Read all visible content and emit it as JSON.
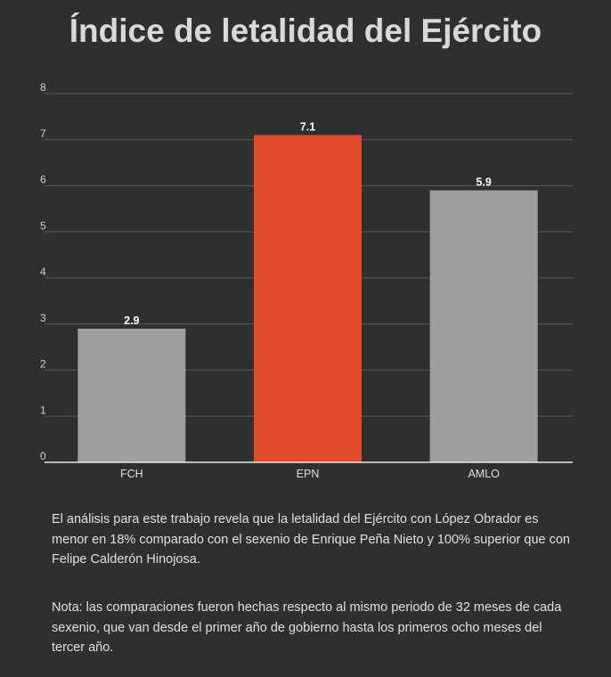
{
  "title": "Índice de letalidad del Ejército",
  "chart_data": {
    "type": "bar",
    "categories": [
      "FCH",
      "EPN",
      "AMLO"
    ],
    "values": [
      2.9,
      7.1,
      5.9
    ],
    "data_labels": [
      "2.9",
      "7.1",
      "5.9"
    ],
    "ylim": [
      0,
      8
    ],
    "y_ticks": [
      0,
      1,
      2,
      3,
      4,
      5,
      6,
      7,
      8
    ],
    "grid": true,
    "legend": "none",
    "colors": [
      "#9e9e9e",
      "#e24b2c",
      "#9e9e9e"
    ],
    "xlabel": "",
    "ylabel": ""
  },
  "notes": {
    "analysis": "El análisis para este trabajo revela que la letalidad del Ejército con López Obrador es menor en 18% comparado con el sexenio de Enrique Peña Nieto y 100% superior que con Felipe Calderón Hinojosa.",
    "comparison": "Nota: las comparaciones fueron hechas respecto al mismo periodo de 32 meses de cada sexenio, que van desde el primer año de gobierno hasta los primeros ocho meses del tercer año."
  }
}
